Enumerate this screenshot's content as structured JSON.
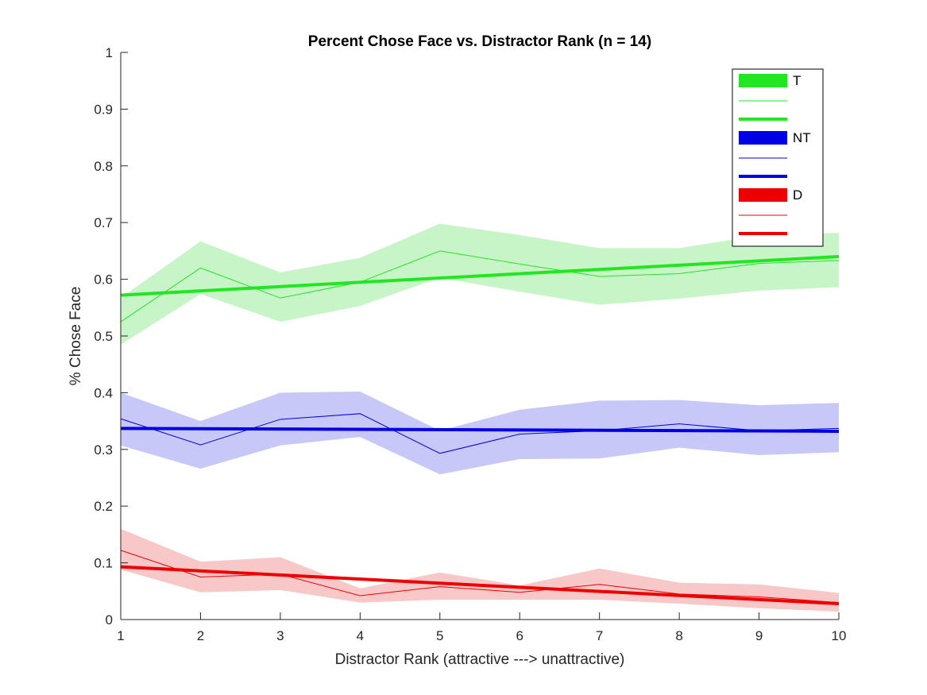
{
  "chart_data": {
    "type": "line",
    "title": "Percent Chose Face vs. Distractor Rank (n = 14)",
    "xlabel": "Distractor Rank (attractive ---> unattractive)",
    "ylabel": "% Chose Face",
    "xlim": [
      1,
      10
    ],
    "ylim": [
      0,
      1
    ],
    "xticks": [
      "1",
      "2",
      "3",
      "4",
      "5",
      "6",
      "7",
      "8",
      "9",
      "10"
    ],
    "yticks": [
      "0",
      "0.1",
      "0.2",
      "0.3",
      "0.4",
      "0.5",
      "0.6",
      "0.7",
      "0.8",
      "0.9",
      "1"
    ],
    "grid": false,
    "legend_position": "top-right",
    "x": [
      1,
      2,
      3,
      4,
      5,
      6,
      7,
      8,
      9,
      10
    ],
    "series": [
      {
        "name": "T",
        "color": "#22e622",
        "band_color": "#c8f5c8",
        "values": [
          0.525,
          0.62,
          0.567,
          0.595,
          0.65,
          0.627,
          0.605,
          0.61,
          0.628,
          0.633
        ],
        "upper": [
          0.567,
          0.667,
          0.612,
          0.638,
          0.698,
          0.678,
          0.655,
          0.655,
          0.677,
          0.682
        ],
        "lower": [
          0.485,
          0.574,
          0.525,
          0.553,
          0.603,
          0.578,
          0.555,
          0.566,
          0.58,
          0.586
        ],
        "fit": [
          0.572,
          0.64
        ]
      },
      {
        "name": "NT",
        "color": "#0000e6",
        "band_color": "#c8c8f8",
        "values": [
          0.354,
          0.308,
          0.353,
          0.363,
          0.293,
          0.327,
          0.333,
          0.345,
          0.333,
          0.337
        ],
        "upper": [
          0.4,
          0.35,
          0.4,
          0.402,
          0.333,
          0.37,
          0.386,
          0.387,
          0.378,
          0.382
        ],
        "lower": [
          0.307,
          0.266,
          0.307,
          0.322,
          0.256,
          0.283,
          0.284,
          0.303,
          0.29,
          0.295
        ],
        "fit": [
          0.337,
          0.332
        ]
      },
      {
        "name": "D",
        "color": "#ee0000",
        "band_color": "#f8c8c8",
        "values": [
          0.122,
          0.075,
          0.08,
          0.042,
          0.058,
          0.048,
          0.062,
          0.045,
          0.04,
          0.03
        ],
        "upper": [
          0.16,
          0.102,
          0.11,
          0.055,
          0.083,
          0.06,
          0.09,
          0.065,
          0.062,
          0.047
        ],
        "lower": [
          0.088,
          0.048,
          0.052,
          0.03,
          0.035,
          0.035,
          0.035,
          0.028,
          0.02,
          0.014
        ],
        "fit": [
          0.093,
          0.028
        ]
      }
    ]
  }
}
